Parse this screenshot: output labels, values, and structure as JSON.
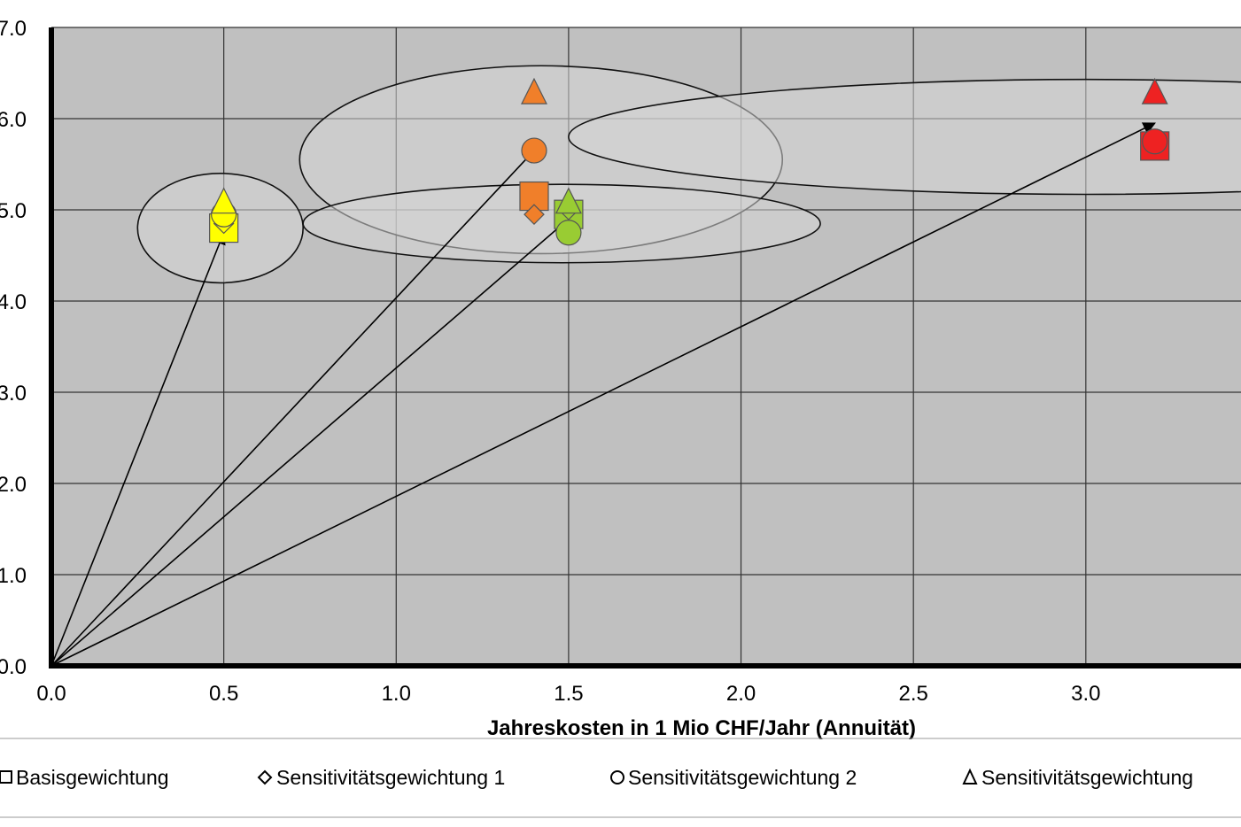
{
  "chart_data": {
    "type": "scatter",
    "title": "",
    "xlabel": "Jahreskosten in 1 Mio CHF/Jahr (Annuität)",
    "ylabel": "",
    "xlim": [
      0,
      3.45
    ],
    "ylim": [
      0,
      7
    ],
    "x_ticks": [
      "0.0",
      "0.5",
      "1.0",
      "1.5",
      "2.0",
      "2.5",
      "3.0"
    ],
    "y_ticks": [
      "0.0",
      "1.0",
      "2.0",
      "3.0",
      "4.0",
      "5.0",
      "6.0",
      "7.0"
    ],
    "grid": true,
    "legend_position": "bottom",
    "legend": [
      {
        "marker": "square",
        "label": "Basisgewichtung"
      },
      {
        "marker": "diamond",
        "label": "Sensitivitätsgewichtung 1"
      },
      {
        "marker": "circle",
        "label": "Sensitivitätsgewichtung 2"
      },
      {
        "marker": "triangle",
        "label": "Sensitivitätsgewichtung"
      }
    ],
    "colors": {
      "plot_background": "#c0c0c0",
      "yellow": "#ffff00",
      "orange": "#f07f2a",
      "green": "#99cc33",
      "red": "#ee2222"
    },
    "groups": [
      {
        "color": "yellow",
        "points": [
          {
            "marker": "square",
            "x": 0.5,
            "y": 4.8
          },
          {
            "marker": "diamond",
            "x": 0.5,
            "y": 4.85
          },
          {
            "marker": "circle",
            "x": 0.5,
            "y": 4.95
          },
          {
            "marker": "triangle",
            "x": 0.5,
            "y": 5.1
          }
        ]
      },
      {
        "color": "orange",
        "points": [
          {
            "marker": "square",
            "x": 1.4,
            "y": 5.15
          },
          {
            "marker": "diamond",
            "x": 1.4,
            "y": 4.95
          },
          {
            "marker": "circle",
            "x": 1.4,
            "y": 5.65
          },
          {
            "marker": "triangle",
            "x": 1.4,
            "y": 6.3
          }
        ]
      },
      {
        "color": "green",
        "points": [
          {
            "marker": "square",
            "x": 1.5,
            "y": 4.95
          },
          {
            "marker": "diamond",
            "x": 1.5,
            "y": 5.0
          },
          {
            "marker": "circle",
            "x": 1.5,
            "y": 4.75
          },
          {
            "marker": "triangle",
            "x": 1.5,
            "y": 5.1
          }
        ]
      },
      {
        "color": "red",
        "points": [
          {
            "marker": "square",
            "x": 3.2,
            "y": 5.7
          },
          {
            "marker": "diamond",
            "x": 3.2,
            "y": 5.75
          },
          {
            "marker": "circle",
            "x": 3.2,
            "y": 5.75
          },
          {
            "marker": "triangle",
            "x": 3.2,
            "y": 6.3
          }
        ]
      }
    ],
    "arrows": [
      {
        "from": [
          0,
          0
        ],
        "to": [
          0.5,
          4.75
        ]
      },
      {
        "from": [
          0,
          0
        ],
        "to": [
          1.4,
          5.65
        ]
      },
      {
        "from": [
          0,
          0
        ],
        "to": [
          1.5,
          4.9
        ]
      },
      {
        "from": [
          0,
          0
        ],
        "to": [
          3.2,
          5.95
        ]
      }
    ],
    "ellipses": [
      {
        "cx": 0.49,
        "cy": 4.8,
        "rx": 0.24,
        "ry": 0.6
      },
      {
        "cx": 1.42,
        "cy": 5.55,
        "rx": 0.7,
        "ry": 1.03
      },
      {
        "cx": 1.48,
        "cy": 4.85,
        "rx": 0.75,
        "ry": 0.43
      },
      {
        "cx": 3.0,
        "cy": 5.8,
        "rx": 1.5,
        "ry": 0.63
      }
    ]
  }
}
